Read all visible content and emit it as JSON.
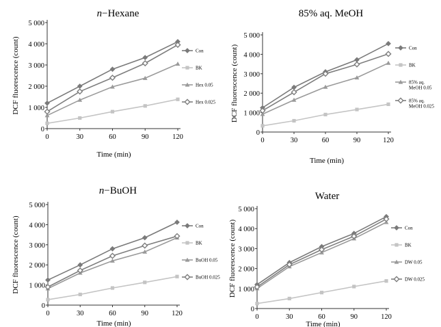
{
  "chart_data": [
    {
      "type": "line",
      "title_prefix": "n",
      "title_rest": "−Hexane",
      "xlabel": "Time (min)",
      "ylabel": "DCF fluorescence (count)",
      "x": [
        0,
        30,
        60,
        90,
        120
      ],
      "x_ticks": [
        "0",
        "30",
        "60",
        "90",
        "120"
      ],
      "y_ticks": [
        "0",
        "1 000",
        "2 000",
        "3 000",
        "4 000",
        "5 000"
      ],
      "ylim": [
        0,
        5000
      ],
      "legend_position": "right",
      "series": [
        {
          "name": "Con",
          "values": [
            1200,
            2000,
            2800,
            3350,
            4100
          ],
          "marker": "diamond",
          "color": "#7a7a7a"
        },
        {
          "name": "BK",
          "values": [
            250,
            500,
            800,
            1070,
            1380
          ],
          "marker": "square",
          "color": "#c4c4c4"
        },
        {
          "name": "Hex 0.05",
          "values": [
            620,
            1350,
            1970,
            2380,
            3050
          ],
          "marker": "triangle",
          "color": "#9a9a9a"
        },
        {
          "name": "Hex 0.025",
          "values": [
            800,
            1750,
            2400,
            3080,
            3950
          ],
          "marker": "hollow-diamond",
          "color": "#7e7e7e"
        }
      ]
    },
    {
      "type": "line",
      "title_prefix": "",
      "title_rest": "85% aq. MeOH",
      "xlabel": "Time (min)",
      "ylabel": "DCF fluorescence (count)",
      "x": [
        0,
        30,
        60,
        90,
        120
      ],
      "x_ticks": [
        "0",
        "30",
        "60",
        "90",
        "120"
      ],
      "y_ticks": [
        "0",
        "1 000",
        "2 000",
        "3 000",
        "4 000",
        "5 000"
      ],
      "ylim": [
        0,
        5000
      ],
      "legend_position": "right",
      "series": [
        {
          "name": "Con",
          "values": [
            1250,
            2300,
            3100,
            3720,
            4550
          ],
          "marker": "diamond",
          "color": "#7a7a7a"
        },
        {
          "name": "BK",
          "values": [
            320,
            580,
            900,
            1160,
            1430
          ],
          "marker": "square",
          "color": "#c4c4c4"
        },
        {
          "name": "85% aq. MeOH 0.05",
          "values": [
            920,
            1650,
            2320,
            2800,
            3550
          ],
          "marker": "triangle",
          "color": "#9a9a9a"
        },
        {
          "name": "85% aq. MeOH 0.025",
          "values": [
            1100,
            2050,
            3000,
            3480,
            4020
          ],
          "marker": "hollow-diamond",
          "color": "#7e7e7e"
        }
      ]
    },
    {
      "type": "line",
      "title_prefix": "n",
      "title_rest": "−BuOH",
      "xlabel": "Time (min)",
      "ylabel": "DCF fluorescence (count)",
      "x": [
        0,
        30,
        60,
        90,
        120
      ],
      "x_ticks": [
        "0",
        "30",
        "60",
        "90",
        "120"
      ],
      "y_ticks": [
        "0",
        "1 000",
        "2 000",
        "3 000",
        "4 000",
        "5 000"
      ],
      "ylim": [
        0,
        5000
      ],
      "legend_position": "right",
      "series": [
        {
          "name": "Con",
          "values": [
            1250,
            2000,
            2800,
            3350,
            4120
          ],
          "marker": "diamond",
          "color": "#7a7a7a"
        },
        {
          "name": "BK",
          "values": [
            270,
            530,
            850,
            1130,
            1420
          ],
          "marker": "square",
          "color": "#c4c4c4"
        },
        {
          "name": "BuOH 0.05",
          "values": [
            820,
            1600,
            2200,
            2650,
            3350
          ],
          "marker": "triangle",
          "color": "#9a9a9a"
        },
        {
          "name": "BuOH 0.025",
          "values": [
            900,
            1720,
            2450,
            2960,
            3430
          ],
          "marker": "hollow-diamond",
          "color": "#7e7e7e"
        }
      ]
    },
    {
      "type": "line",
      "title_prefix": "",
      "title_rest": "Water",
      "xlabel": "Time (min)",
      "ylabel": "DCF fluorescence (count)",
      "x": [
        0,
        30,
        60,
        90,
        120
      ],
      "x_ticks": [
        "0",
        "30",
        "60",
        "90",
        "120"
      ],
      "y_ticks": [
        "0",
        "1 000",
        "2 000",
        "3 000",
        "4 000",
        "5 000"
      ],
      "ylim": [
        0,
        5000
      ],
      "legend_position": "right",
      "series": [
        {
          "name": "Con",
          "values": [
            1200,
            2300,
            3100,
            3760,
            4600
          ],
          "marker": "diamond",
          "color": "#7a7a7a"
        },
        {
          "name": "BK",
          "values": [
            250,
            500,
            800,
            1100,
            1380
          ],
          "marker": "square",
          "color": "#c4c4c4"
        },
        {
          "name": "DW 0.05",
          "values": [
            1000,
            2100,
            2800,
            3500,
            4320
          ],
          "marker": "triangle",
          "color": "#9a9a9a"
        },
        {
          "name": "DW 0.025",
          "values": [
            1080,
            2200,
            2950,
            3620,
            4480
          ],
          "marker": "hollow-diamond",
          "color": "#7e7e7e"
        }
      ]
    }
  ]
}
